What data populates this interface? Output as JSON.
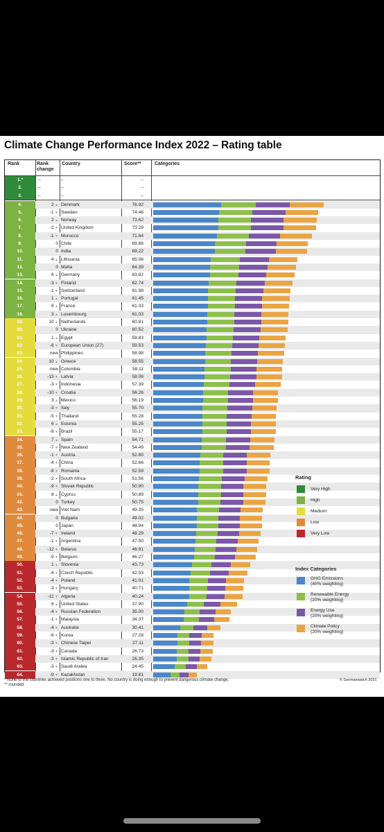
{
  "title": "Climate Change Performance Index 2022 – Rating table",
  "headers": {
    "rank": "Rank",
    "rank_change": "Rank change",
    "country": "Country",
    "score": "Score**",
    "categories": "Categories"
  },
  "colors": {
    "very_high": "#2e8b3a",
    "high": "#7cb342",
    "medium": "#e4dc3c",
    "low": "#e08a3c",
    "very_low": "#b8282c",
    "ghg": "#4a86c8",
    "renewable": "#8dc04a",
    "energy": "#7b57a8",
    "policy": "#eba443"
  },
  "legend": {
    "rating_title": "Rating",
    "ratings": [
      {
        "label": "Very High",
        "color": "#2e8b3a"
      },
      {
        "label": "High",
        "color": "#7cb342"
      },
      {
        "label": "Medium",
        "color": "#e4dc3c"
      },
      {
        "label": "Low",
        "color": "#e08a3c"
      },
      {
        "label": "Very Low",
        "color": "#b8282c"
      }
    ],
    "index_title": "Index Categories",
    "categories": [
      {
        "line1": "GHG Emissions",
        "line2": "(40% weighting)",
        "color": "#4a86c8"
      },
      {
        "line1": "Renewable Energy",
        "line2": "(20% weighting)",
        "color": "#8dc04a"
      },
      {
        "line1": "Energy Use",
        "line2": "(20% weighting)",
        "color": "#7b57a8"
      },
      {
        "line1": "Climate Policy",
        "line2": "(20% weighting)",
        "color": "#eba443"
      }
    ]
  },
  "footnote1": "* None of the countries achieved positions one to three. No country is doing enough to prevent dangerous climate change.",
  "footnote2": "** rounded",
  "copyright": "© Germanwatch 2021",
  "chart_data": {
    "type": "bar",
    "stacked": true,
    "title": "Climate Change Performance Index 2022 – Rating table",
    "empty_rows": [
      {
        "rank": "1.*",
        "change": "–",
        "country": "–",
        "score": "–"
      },
      {
        "rank": "2.",
        "change": "–",
        "country": "–",
        "score": "–"
      },
      {
        "rank": "3.",
        "change": "–",
        "country": "–",
        "score": "–"
      }
    ],
    "rows": [
      {
        "rank": "4.",
        "change": "2",
        "dir": "up",
        "country": "Denmark",
        "score": 76.92,
        "rating": "high"
      },
      {
        "rank": "5.",
        "change": "-1",
        "dir": "down",
        "country": "Sweden",
        "score": 74.46,
        "rating": "high"
      },
      {
        "rank": "6.",
        "change": "2",
        "dir": "up",
        "country": "Norway",
        "score": 73.62,
        "rating": "high"
      },
      {
        "rank": "7.",
        "change": "-2",
        "dir": "down",
        "country": "United Kingdom",
        "score": 73.29,
        "rating": "high"
      },
      {
        "rank": "8.",
        "change": "-1",
        "dir": "down",
        "country": "Morocco",
        "score": 71.64,
        "rating": "high"
      },
      {
        "rank": "9.",
        "change": "0",
        "dir": "none",
        "country": "Chile",
        "score": 69.66,
        "rating": "high"
      },
      {
        "rank": "10.",
        "change": "0",
        "dir": "none",
        "country": "India",
        "score": 69.22,
        "rating": "high"
      },
      {
        "rank": "11.",
        "change": "4",
        "dir": "up",
        "country": "Lithuania",
        "score": 65.06,
        "rating": "high"
      },
      {
        "rank": "12.",
        "change": "0",
        "dir": "none",
        "country": "Malta",
        "score": 64.39,
        "rating": "high"
      },
      {
        "rank": "13.",
        "change": "6",
        "dir": "up",
        "country": "Germany",
        "score": 63.82,
        "rating": "high"
      },
      {
        "rank": "14.",
        "change": "-3",
        "dir": "down",
        "country": "Finland",
        "score": 62.74,
        "rating": "high"
      },
      {
        "rank": "15.",
        "change": "-1",
        "dir": "down",
        "country": "Switzerland",
        "score": 61.98,
        "rating": "high"
      },
      {
        "rank": "16.",
        "change": "1",
        "dir": "up",
        "country": "Portugal",
        "score": 61.45,
        "rating": "high"
      },
      {
        "rank": "17.",
        "change": "6",
        "dir": "up",
        "country": "France",
        "score": 61.33,
        "rating": "high"
      },
      {
        "rank": "18.",
        "change": "3",
        "dir": "up",
        "country": "Luxembourg",
        "score": 61.03,
        "rating": "high"
      },
      {
        "rank": "19.",
        "change": "10",
        "dir": "up",
        "country": "Netherlands",
        "score": 60.81,
        "rating": "medium"
      },
      {
        "rank": "20.",
        "change": "0",
        "dir": "none",
        "country": "Ukraine",
        "score": 60.52,
        "rating": "medium"
      },
      {
        "rank": "21.",
        "change": "1",
        "dir": "up",
        "country": "Egypt",
        "score": 59.83,
        "rating": "medium"
      },
      {
        "rank": "22.",
        "change": "-6",
        "dir": "down",
        "country": "European Union (27)",
        "score": 59.53,
        "rating": "medium"
      },
      {
        "rank": "23.",
        "change": "new",
        "dir": "none",
        "country": "Philippines",
        "score": 58.98,
        "rating": "medium"
      },
      {
        "rank": "24.",
        "change": "10",
        "dir": "up",
        "country": "Greece",
        "score": 58.55,
        "rating": "medium"
      },
      {
        "rank": "25.",
        "change": "new",
        "dir": "none",
        "country": "Colombia",
        "score": 58.11,
        "rating": "medium"
      },
      {
        "rank": "26.",
        "change": "-13",
        "dir": "down",
        "country": "Latvia",
        "score": 58.06,
        "rating": "medium"
      },
      {
        "rank": "27.",
        "change": "-3",
        "dir": "down",
        "country": "Indonesia",
        "score": 57.39,
        "rating": "medium"
      },
      {
        "rank": "28.",
        "change": "-10",
        "dir": "down",
        "country": "Croatia",
        "score": 56.26,
        "rating": "medium"
      },
      {
        "rank": "29.",
        "change": "3",
        "dir": "up",
        "country": "Mexico",
        "score": 56.19,
        "rating": "medium"
      },
      {
        "rank": "30.",
        "change": "-3",
        "dir": "down",
        "country": "Italy",
        "score": 55.7,
        "rating": "medium"
      },
      {
        "rank": "31.",
        "change": "-5",
        "dir": "down",
        "country": "Thailand",
        "score": 55.28,
        "rating": "medium"
      },
      {
        "rank": "32.",
        "change": "6",
        "dir": "up",
        "country": "Estonia",
        "score": 55.25,
        "rating": "medium"
      },
      {
        "rank": "33.",
        "change": "-8",
        "dir": "down",
        "country": "Brazil",
        "score": 55.17,
        "rating": "medium"
      },
      {
        "rank": "34.",
        "change": "7",
        "dir": "up",
        "country": "Spain",
        "score": 54.71,
        "rating": "low"
      },
      {
        "rank": "35.",
        "change": "-7",
        "dir": "down",
        "country": "New Zealand",
        "score": 54.49,
        "rating": "low"
      },
      {
        "rank": "36.",
        "change": "-1",
        "dir": "down",
        "country": "Austria",
        "score": 52.8,
        "rating": "low"
      },
      {
        "rank": "37.",
        "change": "-4",
        "dir": "down",
        "country": "China",
        "score": 52.66,
        "rating": "low"
      },
      {
        "rank": "38.",
        "change": "-8",
        "dir": "down",
        "country": "Romania",
        "score": 52.59,
        "rating": "low"
      },
      {
        "rank": "39.",
        "change": "-2",
        "dir": "down",
        "country": "South Africa",
        "score": 51.56,
        "rating": "low"
      },
      {
        "rank": "40.",
        "change": "-9",
        "dir": "down",
        "country": "Slovak Republic",
        "score": 50.9,
        "rating": "low"
      },
      {
        "rank": "41.",
        "change": "8",
        "dir": "up",
        "country": "Cyprus",
        "score": 50.89,
        "rating": "low"
      },
      {
        "rank": "42.",
        "change": "0",
        "dir": "none",
        "country": "Turkey",
        "score": 50.75,
        "rating": "low"
      },
      {
        "rank": "43.",
        "change": "new",
        "dir": "none",
        "country": "Viet Nam",
        "score": 49.35,
        "rating": "low"
      },
      {
        "rank": "44.",
        "change": "0",
        "dir": "none",
        "country": "Bulgaria",
        "score": 49.02,
        "rating": "low"
      },
      {
        "rank": "45.",
        "change": "0",
        "dir": "none",
        "country": "Japan",
        "score": 48.94,
        "rating": "low"
      },
      {
        "rank": "46.",
        "change": "-7",
        "dir": "down",
        "country": "Ireland",
        "score": 48.29,
        "rating": "low"
      },
      {
        "rank": "47.",
        "change": "-1",
        "dir": "down",
        "country": "Argentina",
        "score": 47.5,
        "rating": "low"
      },
      {
        "rank": "48.",
        "change": "-12",
        "dir": "down",
        "country": "Belarus",
        "score": 46.91,
        "rating": "low"
      },
      {
        "rank": "49.",
        "change": "-9",
        "dir": "down",
        "country": "Belgium",
        "score": 46.27,
        "rating": "low"
      },
      {
        "rank": "50.",
        "change": "1",
        "dir": "up",
        "country": "Slovenia",
        "score": 43.73,
        "rating": "very_low"
      },
      {
        "rank": "51.",
        "change": "-4",
        "dir": "down",
        "country": "Czech Republic",
        "score": 42.53,
        "rating": "very_low"
      },
      {
        "rank": "52.",
        "change": "-4",
        "dir": "down",
        "country": "Poland",
        "score": 41.01,
        "rating": "very_low"
      },
      {
        "rank": "53.",
        "change": "-3",
        "dir": "down",
        "country": "Hungary",
        "score": 40.71,
        "rating": "very_low"
      },
      {
        "rank": "54.",
        "change": "-11",
        "dir": "down",
        "country": "Algeria",
        "score": 40.24,
        "rating": "very_low"
      },
      {
        "rank": "55.",
        "change": "6",
        "dir": "up",
        "country": "United States",
        "score": 37.9,
        "rating": "very_low"
      },
      {
        "rank": "56.",
        "change": "-4",
        "dir": "down",
        "country": "Russian Federation",
        "score": 35.0,
        "rating": "very_low"
      },
      {
        "rank": "57.",
        "change": "-1",
        "dir": "down",
        "country": "Malaysia",
        "score": 34.37,
        "rating": "very_low"
      },
      {
        "rank": "58.",
        "change": "-4",
        "dir": "down",
        "country": "Australia",
        "score": 30.41,
        "rating": "very_low"
      },
      {
        "rank": "59.",
        "change": "-6",
        "dir": "down",
        "country": "Korea",
        "score": 27.28,
        "rating": "very_low"
      },
      {
        "rank": "60.",
        "change": "-3",
        "dir": "down",
        "country": "Chinese Taipei",
        "score": 27.11,
        "rating": "very_low"
      },
      {
        "rank": "61.",
        "change": "-3",
        "dir": "down",
        "country": "Canada",
        "score": 26.73,
        "rating": "very_low"
      },
      {
        "rank": "62.",
        "change": "-3",
        "dir": "down",
        "country": "Islamic Republic of Iran",
        "score": 26.35,
        "rating": "very_low"
      },
      {
        "rank": "63.",
        "change": "-3",
        "dir": "down",
        "country": "Saudi Arabia",
        "score": 24.45,
        "rating": "very_low"
      },
      {
        "rank": "64.",
        "change": "-9",
        "dir": "down",
        "country": "Kazakhstan",
        "score": 19.81,
        "rating": "very_low"
      }
    ],
    "series": [
      {
        "name": "GHG Emissions",
        "share_of_score": 0.4
      },
      {
        "name": "Renewable Energy",
        "share_of_score": 0.2
      },
      {
        "name": "Energy Use",
        "share_of_score": 0.2
      },
      {
        "name": "Climate Policy",
        "share_of_score": 0.2
      }
    ],
    "xlim": [
      0,
      100
    ]
  }
}
